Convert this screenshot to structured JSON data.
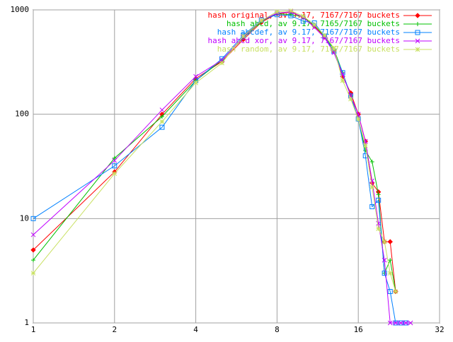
{
  "chart_data": {
    "type": "line",
    "xscale": "log",
    "yscale": "log",
    "grid": true,
    "legend": "top-right",
    "x": [
      1,
      2,
      3,
      4,
      5,
      6,
      7,
      8,
      9,
      10,
      11,
      12,
      13,
      14,
      15,
      16,
      17,
      18,
      19,
      20,
      21,
      22,
      23,
      24,
      25
    ],
    "series": [
      {
        "name": "hash original, av 9.17, 7167/7167 buckets",
        "color": "#ff0000",
        "marker": "diamond",
        "values": [
          5,
          28,
          100,
          220,
          320,
          520,
          760,
          920,
          950,
          850,
          700,
          550,
          400,
          230,
          160,
          100,
          55,
          22,
          18,
          6,
          6,
          2,
          null,
          null,
          null
        ]
      },
      {
        "name": "hash abcd, av 9.17, 7165/7167 buckets",
        "color": "#00c000",
        "marker": "plus",
        "values": [
          4,
          38,
          95,
          210,
          330,
          540,
          780,
          920,
          900,
          860,
          710,
          560,
          420,
          250,
          150,
          90,
          45,
          35,
          17,
          3,
          4,
          2,
          null,
          null,
          null
        ]
      },
      {
        "name": "hash abcdef, av 9.17, 7167/7167 buckets",
        "color": "#0080ff",
        "marker": "square",
        "values": [
          10,
          32,
          75,
          210,
          340,
          570,
          800,
          900,
          880,
          780,
          750,
          560,
          400,
          250,
          150,
          90,
          40,
          13,
          15,
          3,
          2,
          1,
          1,
          1,
          null
        ]
      },
      {
        "name": "hash abcd xor, av 9.17, 7167/7167 buckets",
        "color": "#c000ff",
        "marker": "cross",
        "values": [
          7,
          36,
          110,
          230,
          330,
          550,
          790,
          930,
          960,
          850,
          680,
          540,
          390,
          240,
          150,
          100,
          55,
          23,
          9,
          4,
          1,
          1,
          1,
          1,
          1
        ]
      },
      {
        "name": "hash random, av 9.17, 7167/7167 buckets",
        "color": "#c8e060",
        "marker": "star",
        "values": [
          3,
          27,
          85,
          200,
          310,
          560,
          790,
          960,
          980,
          870,
          720,
          570,
          430,
          210,
          140,
          90,
          50,
          20,
          8,
          6,
          3,
          2,
          null,
          null,
          null
        ]
      }
    ],
    "xlim": [
      1,
      32
    ],
    "xticks": [
      1,
      2,
      4,
      8,
      16,
      32
    ],
    "ylim": [
      1,
      1000
    ],
    "yticks": [
      1,
      10,
      100,
      1000
    ]
  }
}
